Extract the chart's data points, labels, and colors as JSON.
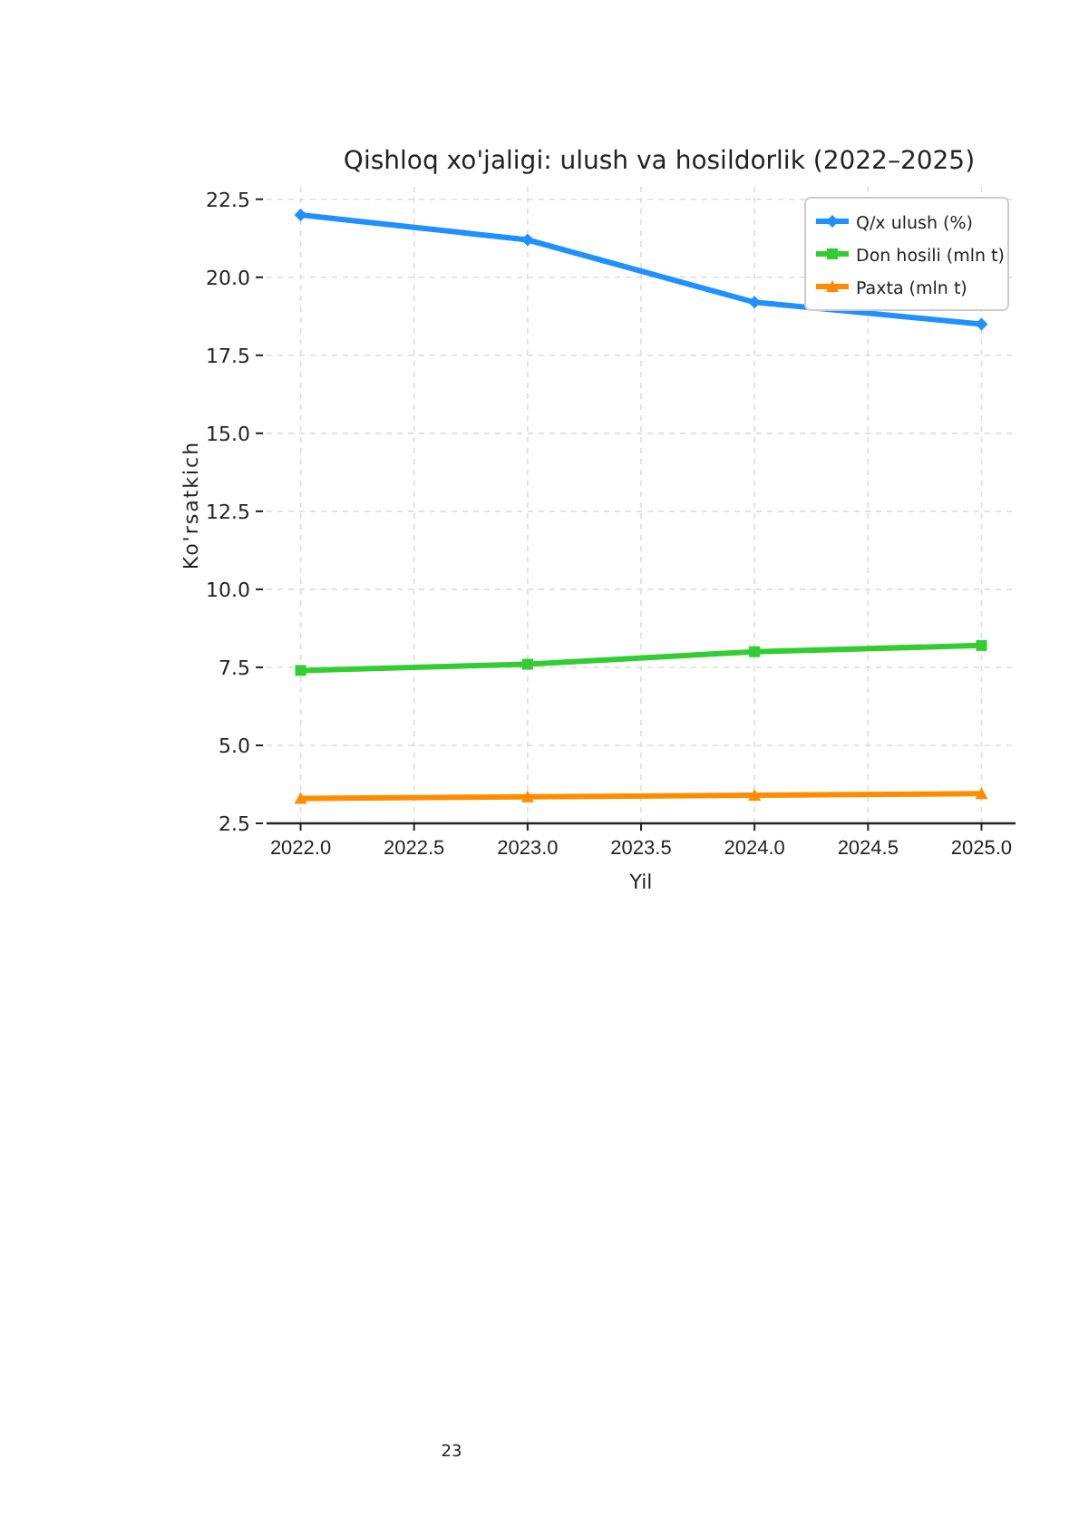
{
  "chart_data": {
    "type": "line",
    "title": "Qishloq xo'jaligi: ulush va hosildorlik (2022–2025)",
    "xlabel": "Yil",
    "ylabel": "Ko'rsatkich",
    "x": [
      2022,
      2023,
      2024,
      2025
    ],
    "series": [
      {
        "name": "Q/x ulush  (%)",
        "color": "#1e90ff",
        "marker": "diamond",
        "values": [
          22.0,
          21.2,
          19.2,
          18.5
        ]
      },
      {
        "name": "Don hosili (mln t)",
        "color": "#32cd32",
        "marker": "square",
        "values": [
          7.4,
          7.6,
          8.0,
          8.2
        ]
      },
      {
        "name": "Paxta (mln t)",
        "color": "#ff8c00",
        "marker": "triangle",
        "values": [
          3.3,
          3.35,
          3.4,
          3.45
        ]
      }
    ],
    "xlim": [
      2021.85,
      2025.15
    ],
    "xticks": [
      {
        "value": 2022,
        "label": "2022.0"
      },
      {
        "value": 2022.5,
        "label": "2022.5"
      },
      {
        "value": 2023,
        "label": "2023.0"
      },
      {
        "value": 2023.5,
        "label": "2023.5"
      },
      {
        "value": 2024,
        "label": "2024.0"
      },
      {
        "value": 2024.5,
        "label": "2024.5"
      },
      {
        "value": 2025,
        "label": "2025.0"
      }
    ],
    "ylim": [
      2.5,
      22.9
    ],
    "yticks": [
      2.5,
      {
        "value": 5,
        "label": "5.0"
      },
      7.5,
      {
        "value": 10,
        "label": "10.0"
      },
      12.5,
      {
        "value": 15,
        "label": "15.0"
      },
      17.5,
      {
        "value": 20,
        "label": "20.0"
      },
      22.5
    ],
    "grid": true,
    "legend": "top right",
    "line_style": "solid",
    "annotations": [
      "23"
    ]
  }
}
